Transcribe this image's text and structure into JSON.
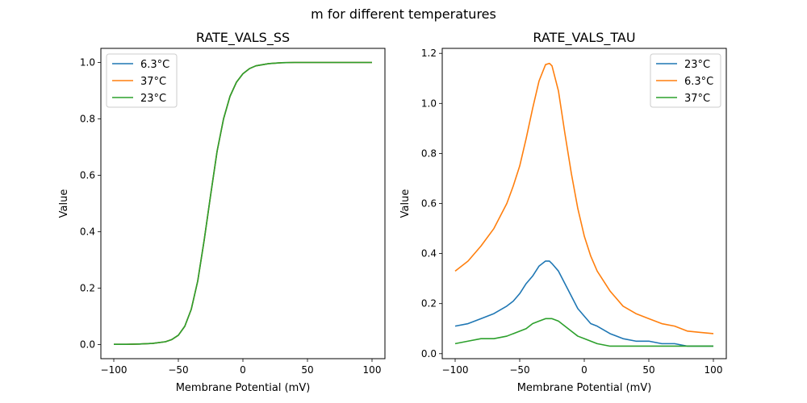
{
  "figure": {
    "suptitle": "m for different temperatures"
  },
  "chart_data": [
    {
      "type": "line",
      "title": "RATE_VALS_SS",
      "xlabel": "Membrane Potential (mV)",
      "ylabel": "Value",
      "xlim": [
        -110,
        110
      ],
      "ylim": [
        -0.05,
        1.05
      ],
      "xticks": [
        -100,
        -50,
        0,
        50,
        100
      ],
      "xtick_labels": [
        "−100",
        "−50",
        "0",
        "50",
        "100"
      ],
      "yticks": [
        0.0,
        0.2,
        0.4,
        0.6,
        0.8,
        1.0
      ],
      "ytick_labels": [
        "0.0",
        "0.2",
        "0.4",
        "0.6",
        "0.8",
        "1.0"
      ],
      "grid": false,
      "legend_position": "top-left",
      "x": [
        -100,
        -90,
        -80,
        -70,
        -60,
        -55,
        -50,
        -45,
        -40,
        -35,
        -30,
        -25,
        -20,
        -15,
        -10,
        -5,
        0,
        5,
        10,
        20,
        30,
        40,
        50,
        60,
        70,
        80,
        90,
        100
      ],
      "series": [
        {
          "name": "6.3°C",
          "color": "#1f77b4",
          "values": [
            0.001,
            0.001,
            0.002,
            0.004,
            0.01,
            0.018,
            0.033,
            0.065,
            0.125,
            0.225,
            0.37,
            0.53,
            0.685,
            0.8,
            0.88,
            0.93,
            0.96,
            0.978,
            0.988,
            0.996,
            0.999,
            1.0,
            1.0,
            1.0,
            1.0,
            1.0,
            1.0,
            1.0
          ]
        },
        {
          "name": "37°C",
          "color": "#ff7f0e",
          "values": [
            0.001,
            0.001,
            0.002,
            0.004,
            0.01,
            0.018,
            0.033,
            0.065,
            0.125,
            0.225,
            0.37,
            0.53,
            0.685,
            0.8,
            0.88,
            0.93,
            0.96,
            0.978,
            0.988,
            0.996,
            0.999,
            1.0,
            1.0,
            1.0,
            1.0,
            1.0,
            1.0,
            1.0
          ]
        },
        {
          "name": "23°C",
          "color": "#2ca02c",
          "values": [
            0.001,
            0.001,
            0.002,
            0.004,
            0.01,
            0.018,
            0.033,
            0.065,
            0.125,
            0.225,
            0.37,
            0.53,
            0.685,
            0.8,
            0.88,
            0.93,
            0.96,
            0.978,
            0.988,
            0.996,
            0.999,
            1.0,
            1.0,
            1.0,
            1.0,
            1.0,
            1.0,
            1.0
          ]
        }
      ]
    },
    {
      "type": "line",
      "title": "RATE_VALS_TAU",
      "xlabel": "Membrane Potential (mV)",
      "ylabel": "Value",
      "xlim": [
        -110,
        110
      ],
      "ylim": [
        -0.02,
        1.22
      ],
      "xticks": [
        -100,
        -50,
        0,
        50,
        100
      ],
      "xtick_labels": [
        "−100",
        "−50",
        "0",
        "50",
        "100"
      ],
      "yticks": [
        0.0,
        0.2,
        0.4,
        0.6,
        0.8,
        1.0,
        1.2
      ],
      "ytick_labels": [
        "0.0",
        "0.2",
        "0.4",
        "0.6",
        "0.8",
        "1.0",
        "1.2"
      ],
      "grid": false,
      "legend_position": "top-right",
      "x": [
        -100,
        -90,
        -80,
        -70,
        -60,
        -55,
        -50,
        -45,
        -40,
        -35,
        -30,
        -27,
        -25,
        -20,
        -15,
        -10,
        -5,
        0,
        5,
        10,
        20,
        30,
        40,
        50,
        60,
        70,
        80,
        90,
        100
      ],
      "series": [
        {
          "name": "23°C",
          "color": "#1f77b4",
          "values": [
            0.11,
            0.12,
            0.14,
            0.16,
            0.19,
            0.21,
            0.24,
            0.28,
            0.31,
            0.35,
            0.37,
            0.37,
            0.36,
            0.33,
            0.28,
            0.23,
            0.18,
            0.15,
            0.12,
            0.11,
            0.08,
            0.06,
            0.05,
            0.05,
            0.04,
            0.04,
            0.03,
            0.03,
            0.03
          ]
        },
        {
          "name": "6.3°C",
          "color": "#ff7f0e",
          "values": [
            0.33,
            0.37,
            0.43,
            0.5,
            0.6,
            0.67,
            0.75,
            0.86,
            0.98,
            1.09,
            1.155,
            1.16,
            1.15,
            1.05,
            0.88,
            0.72,
            0.58,
            0.47,
            0.39,
            0.33,
            0.25,
            0.19,
            0.16,
            0.14,
            0.12,
            0.11,
            0.09,
            0.085,
            0.08
          ]
        },
        {
          "name": "37°C",
          "color": "#2ca02c",
          "values": [
            0.04,
            0.05,
            0.06,
            0.06,
            0.07,
            0.08,
            0.09,
            0.1,
            0.12,
            0.13,
            0.14,
            0.14,
            0.14,
            0.13,
            0.11,
            0.09,
            0.07,
            0.06,
            0.05,
            0.04,
            0.03,
            0.03,
            0.03,
            0.03,
            0.03,
            0.03,
            0.03,
            0.03,
            0.03
          ]
        }
      ]
    }
  ]
}
